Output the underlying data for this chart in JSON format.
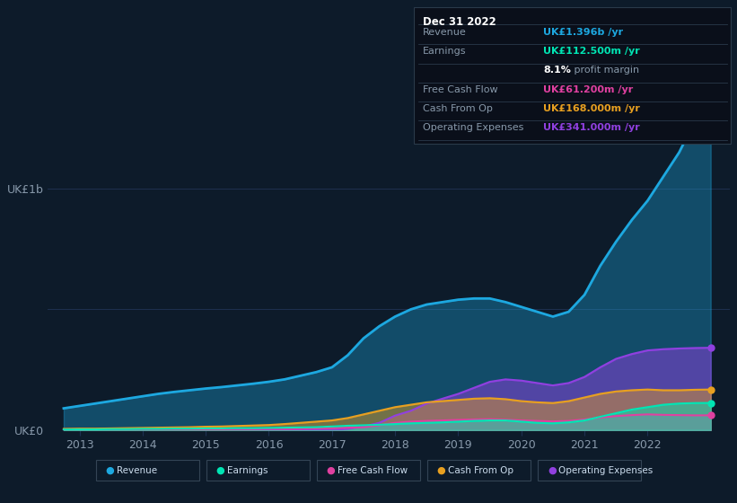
{
  "background_color": "#0d1b2a",
  "plot_bg_color": "#0d1b2a",
  "years": [
    2012.75,
    2013,
    2013.25,
    2013.5,
    2013.75,
    2014,
    2014.25,
    2014.5,
    2014.75,
    2015,
    2015.25,
    2015.5,
    2015.75,
    2016,
    2016.25,
    2016.5,
    2016.75,
    2017,
    2017.25,
    2017.5,
    2017.75,
    2018,
    2018.25,
    2018.5,
    2018.75,
    2019,
    2019.25,
    2019.5,
    2019.75,
    2020,
    2020.25,
    2020.5,
    2020.75,
    2021,
    2021.25,
    2021.5,
    2021.75,
    2022,
    2022.25,
    2022.5,
    2022.75,
    2023.0
  ],
  "revenue": [
    90,
    100,
    110,
    120,
    130,
    140,
    150,
    158,
    165,
    172,
    178,
    185,
    192,
    200,
    210,
    225,
    240,
    260,
    310,
    380,
    430,
    470,
    500,
    520,
    530,
    540,
    545,
    545,
    530,
    510,
    490,
    470,
    490,
    560,
    680,
    780,
    870,
    950,
    1050,
    1150,
    1280,
    1396
  ],
  "earnings": [
    2,
    3,
    3,
    4,
    4,
    5,
    5,
    6,
    6,
    7,
    7,
    8,
    8,
    9,
    10,
    11,
    12,
    15,
    18,
    20,
    22,
    25,
    28,
    30,
    32,
    35,
    38,
    40,
    40,
    35,
    30,
    28,
    32,
    40,
    55,
    70,
    85,
    95,
    105,
    110,
    112,
    112.5
  ],
  "free_cash_flow": [
    1,
    1,
    1,
    1,
    2,
    2,
    2,
    2,
    3,
    3,
    3,
    4,
    4,
    5,
    5,
    6,
    7,
    8,
    10,
    12,
    20,
    30,
    35,
    38,
    40,
    42,
    44,
    45,
    43,
    40,
    38,
    36,
    38,
    44,
    52,
    58,
    62,
    65,
    63,
    62,
    61,
    61.2
  ],
  "cash_from_op": [
    5,
    6,
    6,
    7,
    8,
    9,
    10,
    11,
    12,
    14,
    15,
    17,
    19,
    21,
    25,
    30,
    35,
    40,
    50,
    65,
    80,
    95,
    105,
    115,
    120,
    125,
    130,
    132,
    128,
    120,
    115,
    112,
    120,
    135,
    150,
    160,
    165,
    168,
    165,
    165,
    167,
    168
  ],
  "operating_expenses": [
    0,
    0,
    0,
    0,
    0,
    0,
    0,
    0,
    0,
    0,
    0,
    0,
    0,
    0,
    0,
    0,
    0,
    0,
    5,
    15,
    30,
    60,
    80,
    110,
    130,
    150,
    175,
    200,
    210,
    205,
    195,
    185,
    195,
    220,
    260,
    295,
    315,
    330,
    335,
    338,
    340,
    341
  ],
  "revenue_color": "#1da8e0",
  "earnings_color": "#00e5b4",
  "free_cash_flow_color": "#e040a0",
  "cash_from_op_color": "#e8a020",
  "operating_expenses_color": "#9040e0",
  "ylabel_top": "UK£1b",
  "ylabel_bottom": "UK£0",
  "xlim": [
    2012.5,
    2023.3
  ],
  "ylim": [
    0,
    1500
  ],
  "grid_color": "#1e3050",
  "tick_color": "#8899aa",
  "xtick_years": [
    2013,
    2014,
    2015,
    2016,
    2017,
    2018,
    2019,
    2020,
    2021,
    2022
  ],
  "yticks": [
    0,
    500,
    1000
  ],
  "legend_items": [
    {
      "label": "Revenue",
      "color": "#1da8e0"
    },
    {
      "label": "Earnings",
      "color": "#00e5b4"
    },
    {
      "label": "Free Cash Flow",
      "color": "#e040a0"
    },
    {
      "label": "Cash From Op",
      "color": "#e8a020"
    },
    {
      "label": "Operating Expenses",
      "color": "#9040e0"
    }
  ],
  "infobox": {
    "date": "Dec 31 2022",
    "date_color": "#ffffff",
    "rows": [
      {
        "label": "Revenue",
        "value": "UK£1.396b /yr",
        "label_color": "#8899aa",
        "value_color": "#1da8e0"
      },
      {
        "label": "Earnings",
        "value": "UK£112.500m /yr",
        "label_color": "#8899aa",
        "value_color": "#00e5b4"
      },
      {
        "label": "",
        "value": "8.1% profit margin",
        "label_color": "#8899aa",
        "value_color": "#aaaaaa",
        "bold_prefix": "8.1%"
      },
      {
        "label": "Free Cash Flow",
        "value": "UK£61.200m /yr",
        "label_color": "#8899aa",
        "value_color": "#e040a0"
      },
      {
        "label": "Cash From Op",
        "value": "UK£168.000m /yr",
        "label_color": "#8899aa",
        "value_color": "#e8a020"
      },
      {
        "label": "Operating Expenses",
        "value": "UK£341.000m /yr",
        "label_color": "#8899aa",
        "value_color": "#9040e0"
      }
    ]
  }
}
